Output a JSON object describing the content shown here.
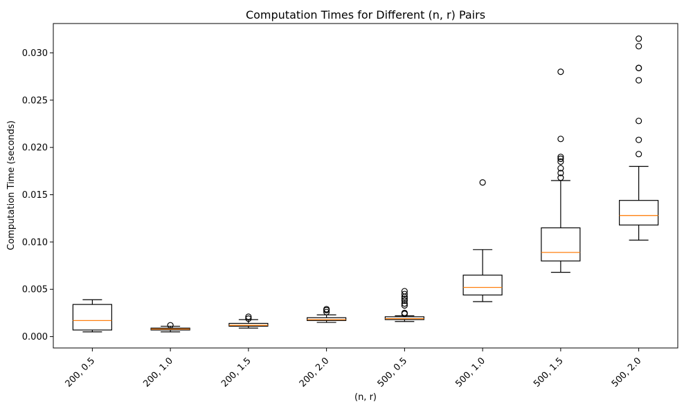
{
  "chart_data": {
    "type": "box",
    "title": "Computation Times for Different (n, r) Pairs",
    "xlabel": "(n, r)",
    "ylabel": "Computation Time (seconds)",
    "ylim": [
      -0.0012,
      0.0331
    ],
    "yticks": [
      0.0,
      0.005,
      0.01,
      0.015,
      0.02,
      0.025,
      0.03
    ],
    "ytick_labels": [
      "0.000",
      "0.005",
      "0.010",
      "0.015",
      "0.020",
      "0.025",
      "0.030"
    ],
    "grid": false,
    "categories": [
      "200, 0.5",
      "200, 1.0",
      "200, 1.5",
      "200, 2.0",
      "500, 0.5",
      "500, 1.0",
      "500, 1.5",
      "500, 2.0"
    ],
    "boxes": [
      {
        "label": "200, 0.5",
        "whisker_low": 0.0005,
        "q1": 0.0007,
        "median": 0.0017,
        "q3": 0.0034,
        "whisker_high": 0.0039,
        "outliers": []
      },
      {
        "label": "200, 1.0",
        "whisker_low": 0.0005,
        "q1": 0.0007,
        "median": 0.0008,
        "q3": 0.0009,
        "whisker_high": 0.0011,
        "outliers": [
          0.0012
        ]
      },
      {
        "label": "200, 1.5",
        "whisker_low": 0.0009,
        "q1": 0.0011,
        "median": 0.0012,
        "q3": 0.0014,
        "whisker_high": 0.0018,
        "outliers": [
          0.0019,
          0.0021
        ]
      },
      {
        "label": "200, 2.0",
        "whisker_low": 0.0015,
        "q1": 0.0017,
        "median": 0.0018,
        "q3": 0.002,
        "whisker_high": 0.0023,
        "outliers": [
          0.0026,
          0.0028,
          0.0029
        ]
      },
      {
        "label": "500, 0.5",
        "whisker_low": 0.0016,
        "q1": 0.0018,
        "median": 0.0019,
        "q3": 0.0021,
        "whisker_high": 0.0022,
        "outliers": [
          0.0024,
          0.0025,
          0.0033,
          0.0035,
          0.0038,
          0.004,
          0.0042,
          0.0045,
          0.0048
        ]
      },
      {
        "label": "500, 1.0",
        "whisker_low": 0.0037,
        "q1": 0.0044,
        "median": 0.0052,
        "q3": 0.0065,
        "whisker_high": 0.0092,
        "outliers": [
          0.0163
        ]
      },
      {
        "label": "500, 1.5",
        "whisker_low": 0.0068,
        "q1": 0.008,
        "median": 0.0089,
        "q3": 0.0115,
        "whisker_high": 0.0165,
        "outliers": [
          0.0168,
          0.0173,
          0.0178,
          0.0185,
          0.0188,
          0.019,
          0.0209,
          0.028
        ]
      },
      {
        "label": "500, 2.0",
        "whisker_low": 0.0102,
        "q1": 0.0118,
        "median": 0.0128,
        "q3": 0.0144,
        "whisker_high": 0.018,
        "outliers": [
          0.0193,
          0.0208,
          0.0228,
          0.0271,
          0.0284,
          0.0284,
          0.0307,
          0.0315
        ]
      }
    ],
    "colors": {
      "box": "#000000",
      "median": "#ff7f0e",
      "outlier": "#000000"
    }
  }
}
